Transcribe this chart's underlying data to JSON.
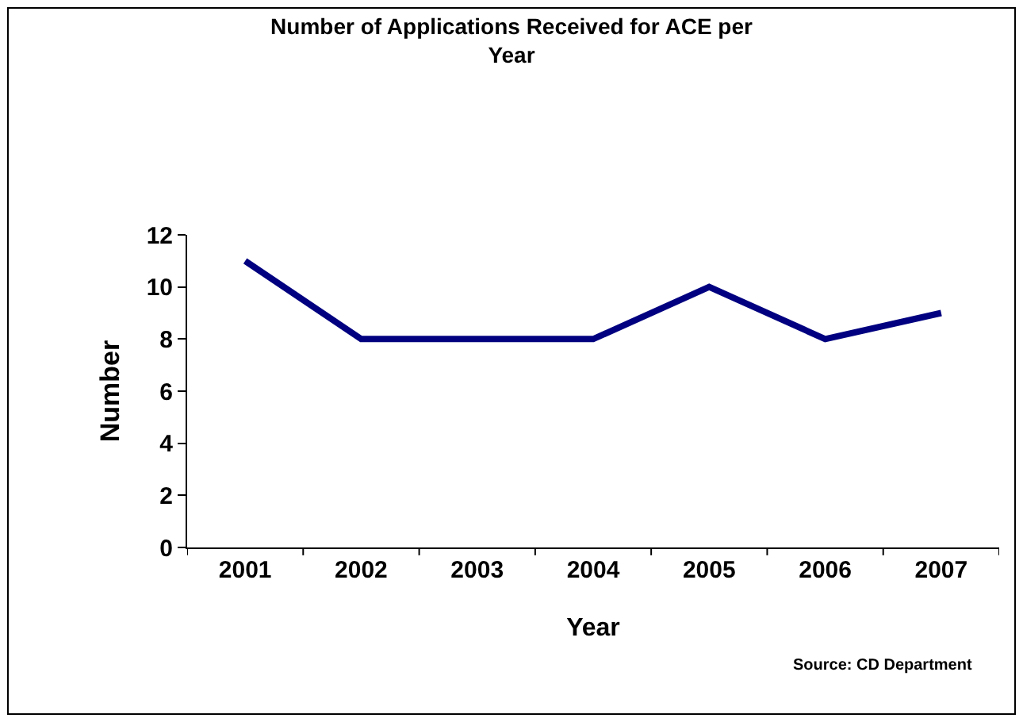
{
  "chart_data": {
    "type": "line",
    "title": "Number of Applications Received for ACE per Year",
    "xlabel": "Year",
    "ylabel": "Number",
    "categories": [
      "2001",
      "2002",
      "2003",
      "2004",
      "2005",
      "2006",
      "2007"
    ],
    "series": [
      {
        "color": "#000080",
        "values": [
          11,
          8,
          8,
          8,
          10,
          8,
          9
        ]
      }
    ],
    "ylim": [
      0,
      12
    ],
    "yticks": [
      0,
      2,
      4,
      6,
      8,
      10,
      12
    ],
    "marker": "none",
    "line_style": "solid",
    "annotations": [
      "Source: CD Department"
    ]
  }
}
